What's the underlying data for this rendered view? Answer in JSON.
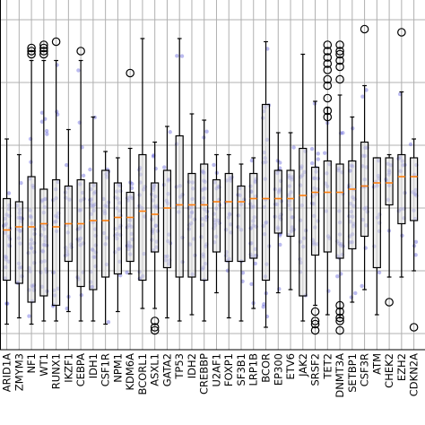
{
  "chart_data": {
    "type": "box",
    "title": "",
    "xlabel": "",
    "ylabel": "",
    "ylim": [
      0,
      1
    ],
    "grid": true,
    "categories": [
      "ARID1A",
      "ZMYM3",
      "NF1",
      "WT1",
      "RUNX1",
      "IKZF1",
      "CEBPA",
      "IDH1",
      "CSF1R",
      "NPM1",
      "KDM6A",
      "BCORL1",
      "ASXL1",
      "GATA2",
      "TP53",
      "IDH2",
      "CREBBP",
      "U2AF1",
      "FOXP1",
      "SF3B1",
      "LRP1B",
      "BCOR",
      "EP300",
      "ETV6",
      "JAK2",
      "SRSF2",
      "TET2",
      "DNMT3A",
      "SETBP1",
      "CSF3R",
      "ATM",
      "CHEK2",
      "EZH2",
      "CDKN2A"
    ],
    "boxes": [
      {
        "q1": 0.17,
        "median": 0.33,
        "q3": 0.43,
        "wlo": 0.03,
        "whi": 0.62
      },
      {
        "q1": 0.16,
        "median": 0.34,
        "q3": 0.42,
        "wlo": 0.05,
        "whi": 0.57
      },
      {
        "q1": 0.1,
        "median": 0.34,
        "q3": 0.5,
        "wlo": 0.03,
        "whi": 0.87
      },
      {
        "q1": 0.12,
        "median": 0.35,
        "q3": 0.46,
        "wlo": 0.04,
        "whi": 0.87
      },
      {
        "q1": 0.09,
        "median": 0.34,
        "q3": 0.49,
        "wlo": 0.04,
        "whi": 0.87
      },
      {
        "q1": 0.23,
        "median": 0.35,
        "q3": 0.47,
        "wlo": 0.07,
        "whi": 0.65
      },
      {
        "q1": 0.15,
        "median": 0.35,
        "q3": 0.49,
        "wlo": 0.04,
        "whi": 0.87
      },
      {
        "q1": 0.14,
        "median": 0.36,
        "q3": 0.48,
        "wlo": 0.04,
        "whi": 0.69
      },
      {
        "q1": 0.18,
        "median": 0.36,
        "q3": 0.52,
        "wlo": 0.03,
        "whi": 0.58
      },
      {
        "q1": 0.19,
        "median": 0.37,
        "q3": 0.48,
        "wlo": 0.07,
        "whi": 0.56
      },
      {
        "q1": 0.23,
        "median": 0.37,
        "q3": 0.45,
        "wlo": 0.19,
        "whi": 0.59
      },
      {
        "q1": 0.17,
        "median": 0.39,
        "q3": 0.57,
        "wlo": 0.08,
        "whi": 0.94
      },
      {
        "q1": 0.26,
        "median": 0.38,
        "q3": 0.48,
        "wlo": 0.08,
        "whi": 0.61
      },
      {
        "q1": 0.21,
        "median": 0.4,
        "q3": 0.52,
        "wlo": 0.05,
        "whi": 0.66
      },
      {
        "q1": 0.18,
        "median": 0.41,
        "q3": 0.63,
        "wlo": 0.04,
        "whi": 0.94
      },
      {
        "q1": 0.18,
        "median": 0.41,
        "q3": 0.51,
        "wlo": 0.06,
        "whi": 0.7
      },
      {
        "q1": 0.17,
        "median": 0.41,
        "q3": 0.54,
        "wlo": 0.04,
        "whi": 0.68
      },
      {
        "q1": 0.26,
        "median": 0.42,
        "q3": 0.49,
        "wlo": 0.13,
        "whi": 0.57
      },
      {
        "q1": 0.23,
        "median": 0.42,
        "q3": 0.51,
        "wlo": 0.05,
        "whi": 0.57
      },
      {
        "q1": 0.23,
        "median": 0.42,
        "q3": 0.47,
        "wlo": 0.04,
        "whi": 0.54
      },
      {
        "q1": 0.24,
        "median": 0.43,
        "q3": 0.51,
        "wlo": 0.08,
        "whi": 0.56
      },
      {
        "q1": 0.17,
        "median": 0.43,
        "q3": 0.73,
        "wlo": 0.02,
        "whi": 0.93
      },
      {
        "q1": 0.32,
        "median": 0.43,
        "q3": 0.52,
        "wlo": 0.13,
        "whi": 0.64
      },
      {
        "q1": 0.31,
        "median": 0.43,
        "q3": 0.52,
        "wlo": 0.14,
        "whi": 0.64
      },
      {
        "q1": 0.12,
        "median": 0.44,
        "q3": 0.59,
        "wlo": 0.04,
        "whi": 0.89
      },
      {
        "q1": 0.25,
        "median": 0.45,
        "q3": 0.53,
        "wlo": 0.09,
        "whi": 0.74
      },
      {
        "q1": 0.26,
        "median": 0.45,
        "q3": 0.55,
        "wlo": 0.06,
        "whi": 0.72
      },
      {
        "q1": 0.24,
        "median": 0.45,
        "q3": 0.54,
        "wlo": 0.05,
        "whi": 0.76
      },
      {
        "q1": 0.27,
        "median": 0.46,
        "q3": 0.55,
        "wlo": 0.1,
        "whi": 0.69
      },
      {
        "q1": 0.31,
        "median": 0.47,
        "q3": 0.61,
        "wlo": 0.14,
        "whi": 0.79
      },
      {
        "q1": 0.21,
        "median": 0.48,
        "q3": 0.56,
        "wlo": 0.06,
        "whi": 0.56
      },
      {
        "q1": 0.41,
        "median": 0.48,
        "q3": 0.56,
        "wlo": 0.18,
        "whi": 0.57
      },
      {
        "q1": 0.35,
        "median": 0.5,
        "q3": 0.57,
        "wlo": 0.18,
        "whi": 0.77
      },
      {
        "q1": 0.36,
        "median": 0.5,
        "q3": 0.56,
        "wlo": 0.2,
        "whi": 0.62
      }
    ],
    "outliers": [
      [],
      [],
      [
        0.89,
        0.9,
        0.91
      ],
      [
        0.89,
        0.9,
        0.91,
        0.92
      ],
      [
        0.93
      ],
      [],
      [
        0.9
      ],
      [],
      [],
      [],
      [
        0.83
      ],
      [],
      [
        0.01,
        0.02,
        0.04
      ],
      [],
      [],
      [],
      [],
      [],
      [],
      [],
      [],
      [],
      [],
      [],
      [],
      [
        0.01,
        0.03,
        0.04,
        0.07
      ],
      [
        0.69,
        0.71,
        0.75,
        0.79,
        0.81,
        0.84,
        0.86,
        0.88,
        0.9,
        0.92
      ],
      [
        0.01,
        0.04,
        0.05,
        0.07,
        0.09,
        0.81,
        0.85,
        0.87,
        0.89,
        0.9,
        0.92
      ],
      [],
      [
        0.97
      ],
      [],
      [
        0.1
      ],
      [
        0.96
      ],
      [
        0.02
      ]
    ],
    "colors": {
      "box_fill": "#e0e0e0",
      "box_edge": "#000000",
      "median": "#ff7f0e",
      "points": "#3b3bd1",
      "grid": "#b0b0b0"
    }
  }
}
